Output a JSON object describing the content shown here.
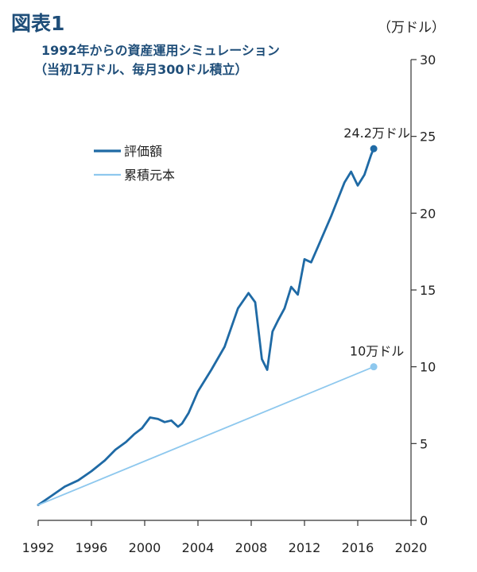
{
  "figure_label": "図表1",
  "unit_label": "（万ドル）",
  "chart_data": {
    "type": "line",
    "title_line1": "1992年からの資産運用シミュレーション",
    "title_line2": "（当初1万ドル、毎月300ドル積立）",
    "xlim": [
      1992,
      2020
    ],
    "ylim": [
      0,
      30
    ],
    "x_ticks": [
      1992,
      1996,
      2000,
      2004,
      2008,
      2012,
      2016,
      2020
    ],
    "x_tick_labels": [
      "1992",
      "1996",
      "2000",
      "2004",
      "2008",
      "2012",
      "2016",
      "2020"
    ],
    "y_ticks": [
      0,
      5,
      10,
      15,
      20,
      25,
      30
    ],
    "y_tick_labels": [
      "0",
      "5",
      "10",
      "15",
      "20",
      "25",
      "30"
    ],
    "legend": [
      "評価額",
      "累積元本"
    ],
    "legend_position": "upper-left",
    "series": [
      {
        "name": "評価額",
        "color": "#1f6aa5",
        "x": [
          1992.0,
          1993.0,
          1994.0,
          1995.0,
          1996.0,
          1997.0,
          1997.8,
          1998.6,
          1999.2,
          1999.8,
          2000.4,
          2001.0,
          2001.5,
          2002.0,
          2002.5,
          2002.8,
          2003.3,
          2004.0,
          2005.0,
          2006.0,
          2007.0,
          2007.8,
          2008.3,
          2008.8,
          2009.2,
          2009.6,
          2010.0,
          2010.5,
          2011.0,
          2011.5,
          2012.0,
          2012.5,
          2013.0,
          2014.0,
          2015.0,
          2015.5,
          2016.0,
          2016.5,
          2017.0,
          2017.2
        ],
        "values": [
          1.0,
          1.6,
          2.2,
          2.6,
          3.2,
          3.9,
          4.6,
          5.1,
          5.6,
          6.0,
          6.7,
          6.6,
          6.4,
          6.5,
          6.1,
          6.3,
          7.0,
          8.4,
          9.8,
          11.3,
          13.8,
          14.8,
          14.2,
          10.5,
          9.8,
          12.3,
          13.0,
          13.8,
          15.2,
          14.7,
          17.0,
          16.8,
          17.8,
          19.8,
          22.0,
          22.7,
          21.8,
          22.5,
          23.8,
          24.2
        ]
      },
      {
        "name": "累積元本",
        "color": "#8ec8ee",
        "x": [
          1992.0,
          2017.2
        ],
        "values": [
          1.0,
          10.0
        ]
      }
    ],
    "annotations": [
      {
        "text": "24.2万ドル",
        "x": 2017.2,
        "y": 24.2
      },
      {
        "text": "10万ドル",
        "x": 2017.2,
        "y": 10.0
      }
    ]
  }
}
